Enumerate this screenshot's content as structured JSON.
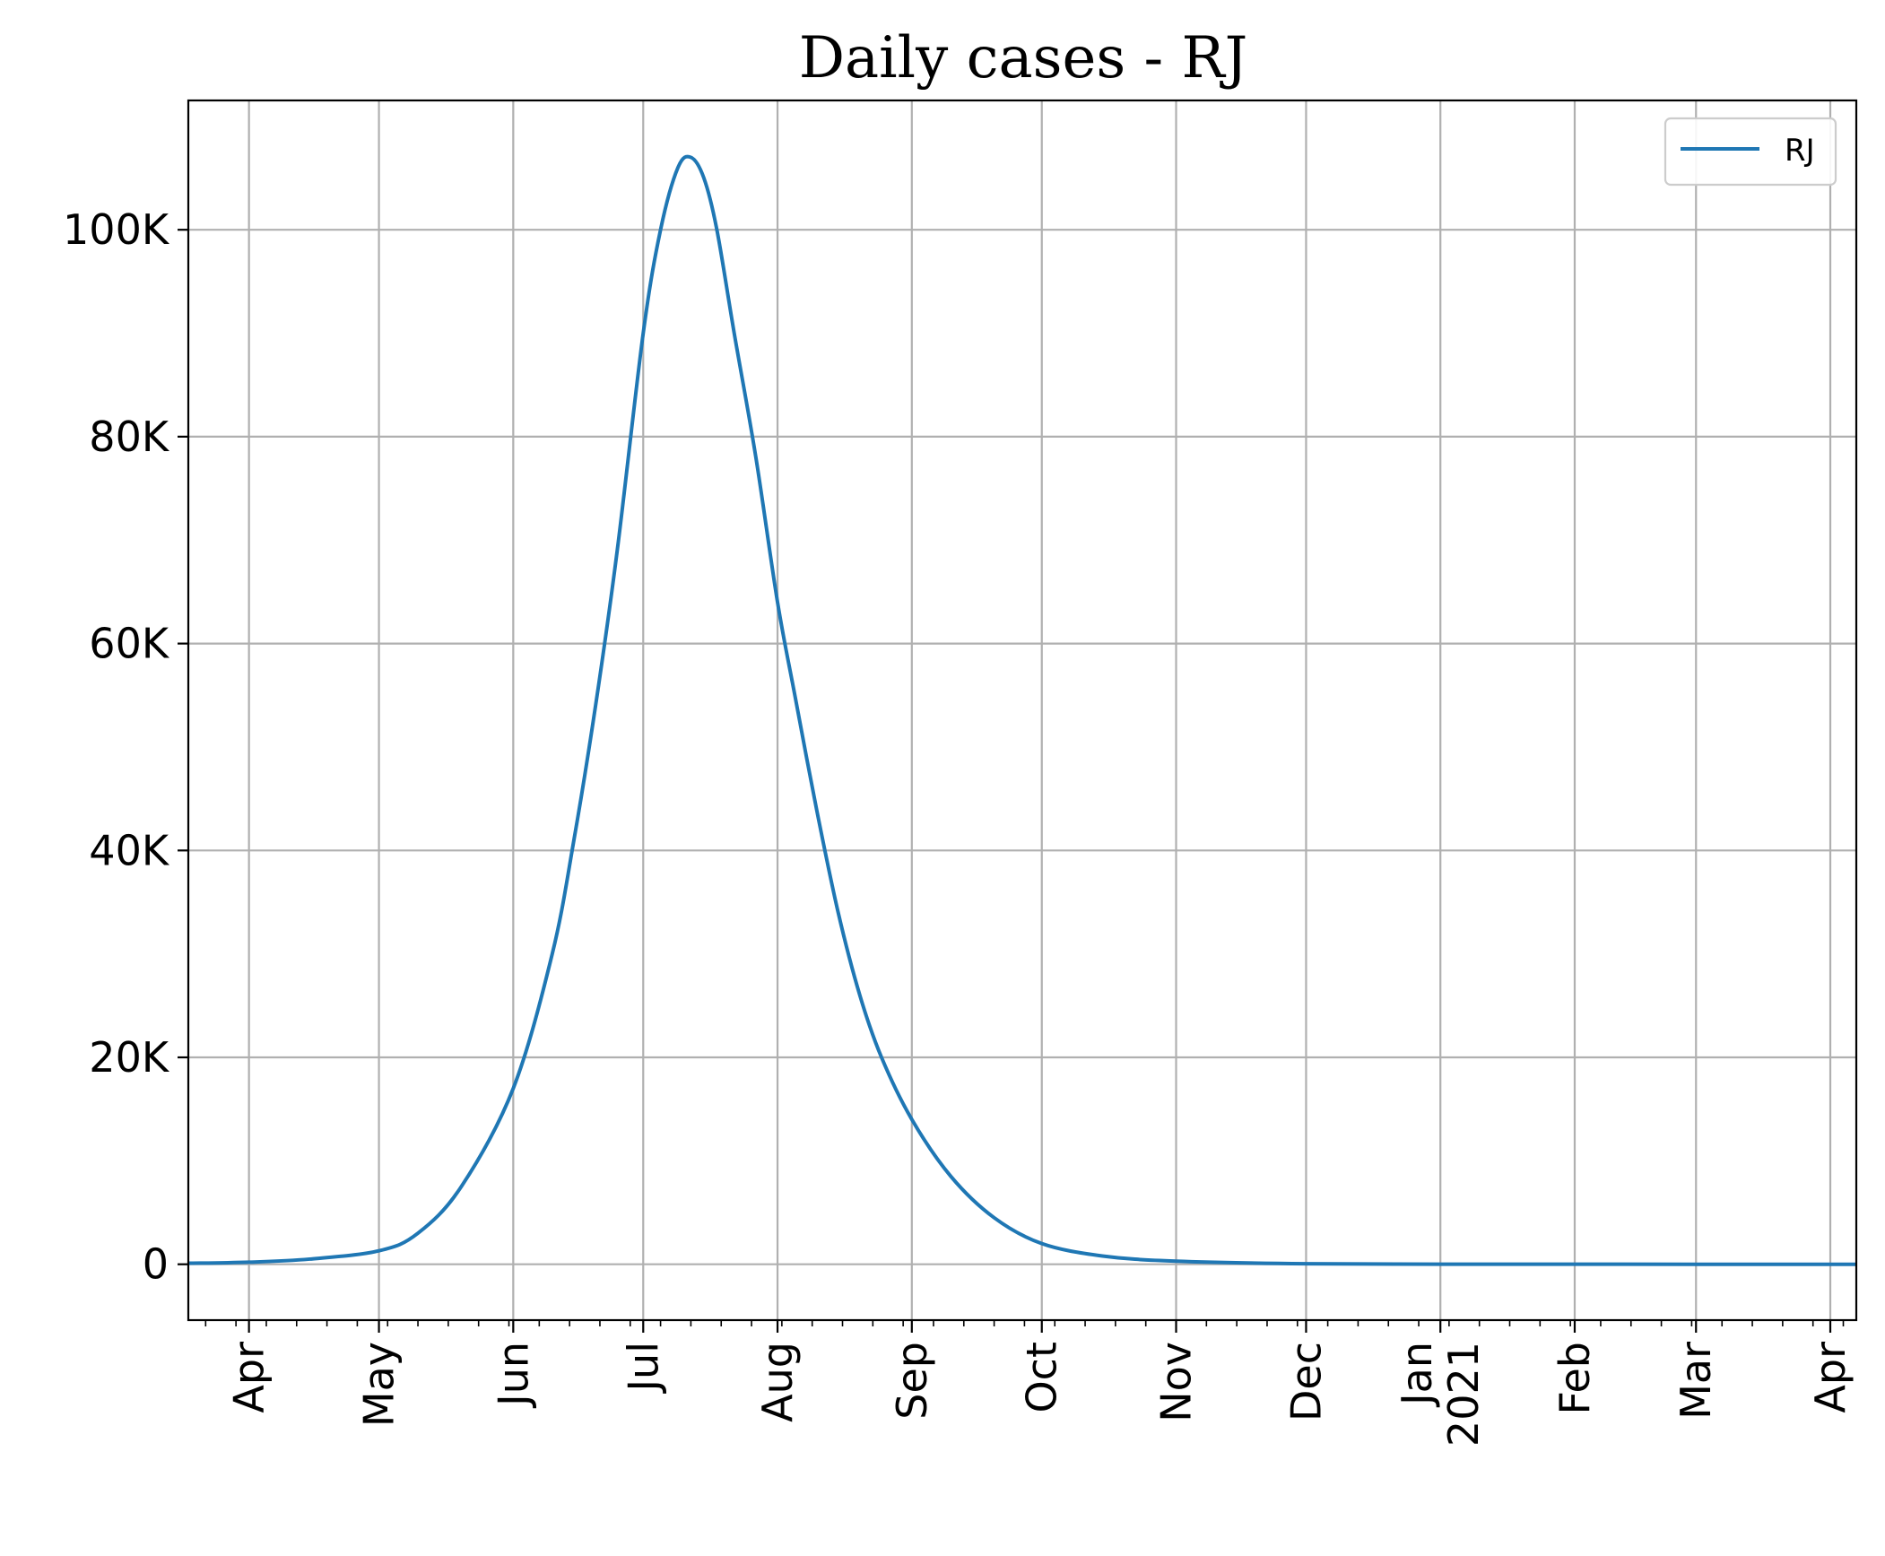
{
  "chart_data": {
    "type": "line",
    "title": "Daily cases - RJ",
    "xlabel": "",
    "ylabel": "",
    "x_range": [
      "2020-03-18",
      "2021-04-07"
    ],
    "ylim": [
      -5400,
      112500
    ],
    "y_ticks": [
      {
        "value": 0,
        "label": "0"
      },
      {
        "value": 20000,
        "label": "20K"
      },
      {
        "value": 40000,
        "label": "40K"
      },
      {
        "value": 60000,
        "label": "60K"
      },
      {
        "value": 80000,
        "label": "80K"
      },
      {
        "value": 100000,
        "label": "100K"
      }
    ],
    "x_ticks": [
      {
        "date": "2020-04-01",
        "label": "Apr"
      },
      {
        "date": "2020-05-01",
        "label": "May"
      },
      {
        "date": "2020-06-01",
        "label": "Jun"
      },
      {
        "date": "2020-07-01",
        "label": "Jul"
      },
      {
        "date": "2020-08-01",
        "label": "Aug"
      },
      {
        "date": "2020-09-01",
        "label": "Sep"
      },
      {
        "date": "2020-10-01",
        "label": "Oct"
      },
      {
        "date": "2020-11-01",
        "label": "Nov"
      },
      {
        "date": "2020-12-01",
        "label": "Dec"
      },
      {
        "date": "2021-01-01",
        "label": "Jan",
        "label2": "2021"
      },
      {
        "date": "2021-02-01",
        "label": "Feb"
      },
      {
        "date": "2021-03-01",
        "label": "Mar"
      },
      {
        "date": "2021-04-01",
        "label": "Apr"
      }
    ],
    "grid": true,
    "legend_position": "top-right",
    "series": [
      {
        "name": "RJ",
        "color": "#1f77b4",
        "x": [
          "2020-03-18",
          "2020-04-01",
          "2020-04-15",
          "2020-05-01",
          "2020-05-10",
          "2020-05-20",
          "2020-06-01",
          "2020-06-10",
          "2020-06-15",
          "2020-06-20",
          "2020-06-25",
          "2020-07-01",
          "2020-07-05",
          "2020-07-09",
          "2020-07-12",
          "2020-07-15",
          "2020-07-18",
          "2020-07-22",
          "2020-07-27",
          "2020-08-01",
          "2020-08-05",
          "2020-08-10",
          "2020-08-15",
          "2020-08-20",
          "2020-08-25",
          "2020-09-01",
          "2020-09-10",
          "2020-09-20",
          "2020-10-01",
          "2020-10-15",
          "2020-11-01",
          "2020-12-01",
          "2021-01-01",
          "2021-02-01",
          "2021-03-01",
          "2021-04-07"
        ],
        "y": [
          100,
          200,
          500,
          1300,
          3000,
          7500,
          17000,
          30000,
          41000,
          54000,
          69000,
          90000,
          100000,
          106000,
          107000,
          105000,
          100000,
          90000,
          78000,
          64000,
          55000,
          44000,
          34000,
          26000,
          20000,
          14000,
          8500,
          4500,
          2000,
          800,
          300,
          50,
          10,
          5,
          2,
          0
        ]
      }
    ]
  }
}
